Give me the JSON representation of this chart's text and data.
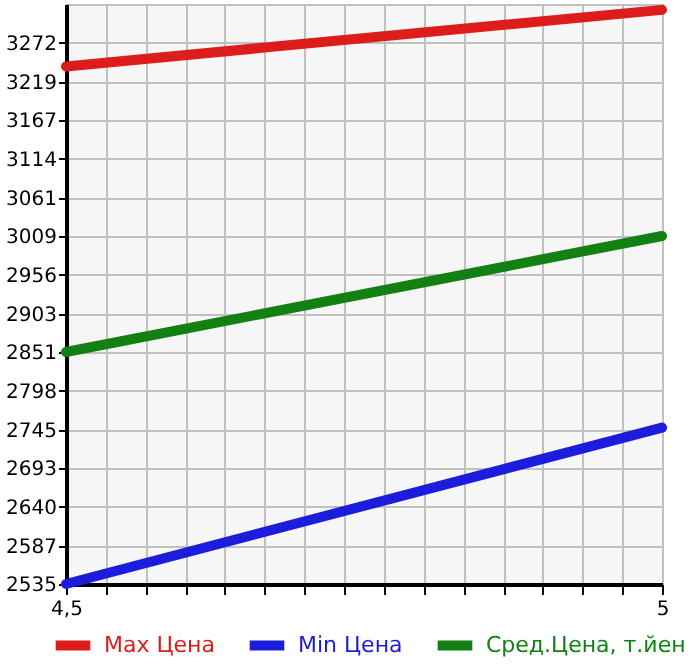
{
  "chart_data": {
    "type": "line",
    "x": [
      4.5,
      5
    ],
    "series": [
      {
        "name": "Max Цена",
        "color": "#dd1c1c",
        "values": [
          3240,
          3317
        ]
      },
      {
        "name": "Min Цена",
        "color": "#1c1cdd",
        "values": [
          2535,
          2748
        ]
      },
      {
        "name": "Сред.Цена, т.йен",
        "color": "#138013",
        "values": [
          2851,
          3009
        ]
      }
    ],
    "xlim": [
      4.5,
      5
    ],
    "xticks": [
      {
        "value": 4.5,
        "label": "4,5"
      },
      {
        "value": 4.5333,
        "label": null
      },
      {
        "value": 4.5667,
        "label": null
      },
      {
        "value": 4.6,
        "label": null
      },
      {
        "value": 4.6333,
        "label": null
      },
      {
        "value": 4.6667,
        "label": null
      },
      {
        "value": 4.7,
        "label": null
      },
      {
        "value": 4.7333,
        "label": null
      },
      {
        "value": 4.7667,
        "label": null
      },
      {
        "value": 4.8,
        "label": null
      },
      {
        "value": 4.8333,
        "label": null
      },
      {
        "value": 4.8667,
        "label": null
      },
      {
        "value": 4.9,
        "label": null
      },
      {
        "value": 4.9333,
        "label": null
      },
      {
        "value": 4.9667,
        "label": null
      },
      {
        "value": 5,
        "label": "5"
      }
    ],
    "ylim": [
      2535,
      3325
    ],
    "yticks": [
      2535,
      2587,
      2640,
      2693,
      2745,
      2798,
      2851,
      2903,
      2956,
      3009,
      3061,
      3114,
      3167,
      3219,
      3272
    ],
    "grid": true,
    "legend": "bottom",
    "marker": "none",
    "line_style": "solid"
  }
}
